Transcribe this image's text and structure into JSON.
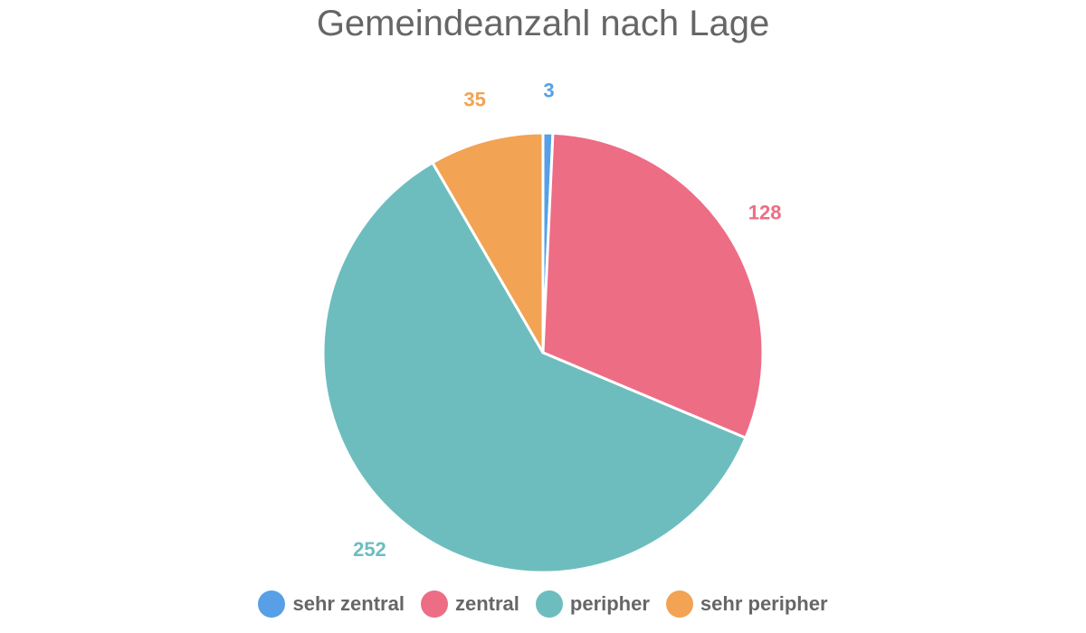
{
  "chart_data": {
    "type": "pie",
    "title": "Gemeindeanzahl nach Lage",
    "categories": [
      "sehr zentral",
      "zentral",
      "peripher",
      "sehr peripher"
    ],
    "values": [
      3,
      128,
      252,
      35
    ],
    "colors": [
      "#57a0e5",
      "#ed6d85",
      "#6dbdbf",
      "#f2a354"
    ],
    "legend_placement": "bottom-center",
    "data_labels": [
      "3",
      "128",
      "252",
      "35"
    ]
  }
}
